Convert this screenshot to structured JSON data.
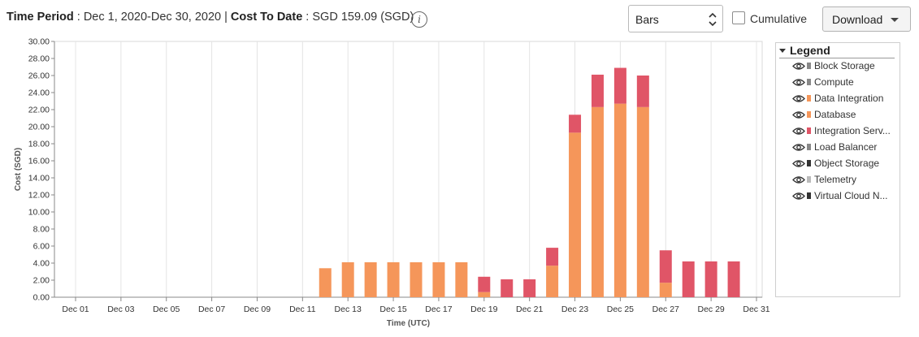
{
  "header": {
    "period_label": "Time Period",
    "period_value": " : Dec 1, 2020-Dec 30, 2020 | ",
    "cost_label": "Cost To Date",
    "cost_value": " : SGD 159.09 (SGD)",
    "info_icon": "i"
  },
  "controls": {
    "chart_type": "Bars",
    "cumulative_label": "Cumulative",
    "cumulative_checked": false,
    "download_label": "Download"
  },
  "legend": {
    "title": "Legend",
    "items": [
      {
        "label": "Block Storage",
        "color": "#888888"
      },
      {
        "label": "Compute",
        "color": "#888888"
      },
      {
        "label": "Data Integration",
        "color": "#f5965a"
      },
      {
        "label": "Database",
        "color": "#f5965a"
      },
      {
        "label": "Integration Serv...",
        "color": "#e05567"
      },
      {
        "label": "Load Balancer",
        "color": "#888888"
      },
      {
        "label": "Object Storage",
        "color": "#333333"
      },
      {
        "label": "Telemetry",
        "color": "#bbbbbb"
      },
      {
        "label": "Virtual Cloud N...",
        "color": "#333333"
      }
    ]
  },
  "chart_data": {
    "type": "bar",
    "stacked": true,
    "xlabel": "Time (UTC)",
    "ylabel": "Cost (SGD)",
    "ylim": [
      0,
      30
    ],
    "yticks": [
      "0.00",
      "2.00",
      "4.00",
      "6.00",
      "8.00",
      "10.00",
      "12.00",
      "14.00",
      "16.00",
      "18.00",
      "20.00",
      "22.00",
      "24.00",
      "26.00",
      "28.00",
      "30.00"
    ],
    "xticks": [
      "Dec 01",
      "Dec 03",
      "Dec 05",
      "Dec 07",
      "Dec 09",
      "Dec 11",
      "Dec 13",
      "Dec 15",
      "Dec 17",
      "Dec 19",
      "Dec 21",
      "Dec 23",
      "Dec 25",
      "Dec 27",
      "Dec 29",
      "Dec 31"
    ],
    "grid": "vertical",
    "categories": [
      "Dec 12",
      "Dec 13",
      "Dec 14",
      "Dec 15",
      "Dec 16",
      "Dec 17",
      "Dec 18",
      "Dec 19",
      "Dec 20",
      "Dec 21",
      "Dec 22",
      "Dec 23",
      "Dec 24",
      "Dec 25",
      "Dec 26",
      "Dec 27",
      "Dec 28",
      "Dec 29",
      "Dec 30"
    ],
    "series": [
      {
        "color": "#f5965a",
        "values": [
          3.4,
          4.1,
          4.1,
          4.1,
          4.1,
          4.1,
          4.1,
          0.6,
          0,
          0,
          3.7,
          19.3,
          22.3,
          22.7,
          22.3,
          1.7,
          0,
          0,
          0
        ]
      },
      {
        "color": "#e05567",
        "values": [
          0,
          0,
          0,
          0,
          0,
          0,
          0,
          1.8,
          2.1,
          2.1,
          2.1,
          2.1,
          3.8,
          4.2,
          3.7,
          3.8,
          4.2,
          4.2,
          4.2
        ]
      }
    ]
  }
}
